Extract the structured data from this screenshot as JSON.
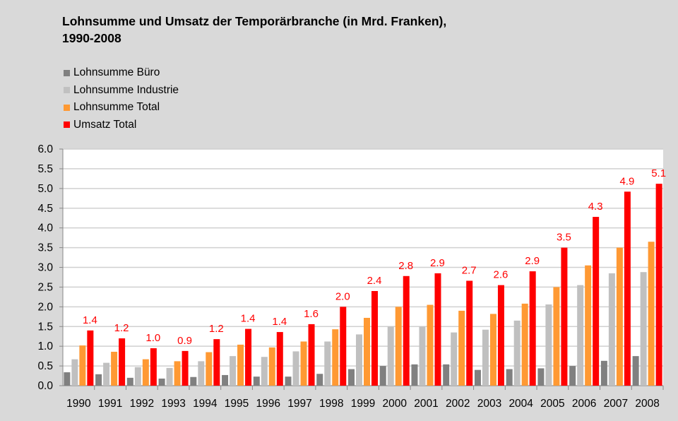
{
  "chart_data": {
    "type": "bar",
    "title": "Lohnsumme und Umsatz der Temporärbranche (in Mrd. Franken),",
    "subtitle": "1990-2008",
    "xlabel": "",
    "ylabel": "",
    "ylim": [
      0,
      6
    ],
    "yticks": [
      "0.0",
      "0.5",
      "1.0",
      "1.5",
      "2.0",
      "2.5",
      "3.0",
      "3.5",
      "4.0",
      "4.5",
      "5.0",
      "5.5",
      "6.0"
    ],
    "grid": true,
    "legend_position": "top-left",
    "categories": [
      "1990",
      "1991",
      "1992",
      "1993",
      "1994",
      "1995",
      "1996",
      "1997",
      "1998",
      "1999",
      "2000",
      "2001",
      "2002",
      "2003",
      "2004",
      "2005",
      "2006",
      "2007",
      "2008"
    ],
    "series": [
      {
        "name": "Lohnsumme Büro",
        "color": "#808080",
        "values": [
          0.34,
          0.29,
          0.2,
          0.18,
          0.22,
          0.27,
          0.23,
          0.23,
          0.3,
          0.42,
          0.5,
          0.54,
          0.54,
          0.4,
          0.42,
          0.44,
          0.5,
          0.63,
          0.75
        ]
      },
      {
        "name": "Lohnsumme Industrie",
        "color": "#c0c0c0",
        "values": [
          0.67,
          0.58,
          0.47,
          0.45,
          0.62,
          0.75,
          0.73,
          0.87,
          1.12,
          1.3,
          1.5,
          1.5,
          1.35,
          1.42,
          1.65,
          2.06,
          2.55,
          2.85,
          2.88
        ]
      },
      {
        "name": "Lohnsumme Total",
        "color": "#ff9933",
        "values": [
          1.02,
          0.86,
          0.67,
          0.62,
          0.85,
          1.04,
          0.97,
          1.12,
          1.43,
          1.72,
          2.0,
          2.05,
          1.9,
          1.82,
          2.08,
          2.5,
          3.05,
          3.5,
          3.65
        ]
      },
      {
        "name": "Umsatz Total",
        "color": "#ff0000",
        "values": [
          1.4,
          1.2,
          0.95,
          0.88,
          1.18,
          1.44,
          1.36,
          1.56,
          2.0,
          2.4,
          2.78,
          2.85,
          2.66,
          2.55,
          2.9,
          3.5,
          4.28,
          4.92,
          5.12
        ],
        "labels": [
          "1.4",
          "1.2",
          "1.0",
          "0.9",
          "1.2",
          "1.4",
          "1.4",
          "1.6",
          "2.0",
          "2.4",
          "2.8",
          "2.9",
          "2.7",
          "2.6",
          "2.9",
          "3.5",
          "4.3",
          "4.9",
          "5.1"
        ]
      }
    ]
  }
}
